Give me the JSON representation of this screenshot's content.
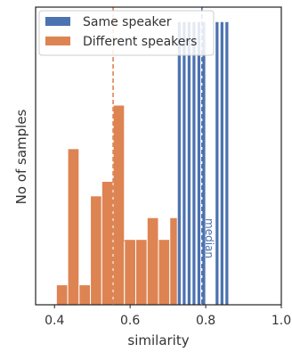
{
  "chart_data": {
    "type": "bar",
    "xlabel": "similarity",
    "ylabel": "No of samples",
    "xlim": [
      0.35,
      1.0
    ],
    "ylim": [
      0,
      8.2
    ],
    "xticks": [
      {
        "value": 0.4,
        "label": "0.4"
      },
      {
        "value": 0.6,
        "label": "0.6"
      },
      {
        "value": 0.8,
        "label": "0.8"
      },
      {
        "value": 1.0,
        "label": "1.0"
      }
    ],
    "grid": false,
    "legend_position": "top-left",
    "series": [
      {
        "name": "Different speakers",
        "color": "#dd8452",
        "bin_width": 0.03,
        "bins": [
          {
            "x0": 0.405,
            "value": 0.55
          },
          {
            "x0": 0.435,
            "value": 4.3
          },
          {
            "x0": 0.465,
            "value": 0.55
          },
          {
            "x0": 0.495,
            "value": 3.0
          },
          {
            "x0": 0.525,
            "value": 3.4
          },
          {
            "x0": 0.555,
            "value": 5.5
          },
          {
            "x0": 0.585,
            "value": 1.8
          },
          {
            "x0": 0.615,
            "value": 1.8
          },
          {
            "x0": 0.645,
            "value": 2.4
          },
          {
            "x0": 0.675,
            "value": 1.8
          },
          {
            "x0": 0.705,
            "value": 2.4
          }
        ],
        "median": 0.555,
        "median_label": "med"
      },
      {
        "name": "Same speaker",
        "color": "#4c72b0",
        "bin_width": 0.01,
        "bins": [
          {
            "x0": 0.725,
            "value": 7.8
          },
          {
            "x0": 0.738,
            "value": 7.8
          },
          {
            "x0": 0.751,
            "value": 7.8
          },
          {
            "x0": 0.764,
            "value": 7.8
          },
          {
            "x0": 0.777,
            "value": 7.8
          },
          {
            "x0": 0.79,
            "value": 7.8
          },
          {
            "x0": 0.825,
            "value": 7.8
          },
          {
            "x0": 0.838,
            "value": 7.8
          },
          {
            "x0": 0.851,
            "value": 7.8
          }
        ],
        "median": 0.79,
        "median_label": "median"
      }
    ]
  }
}
